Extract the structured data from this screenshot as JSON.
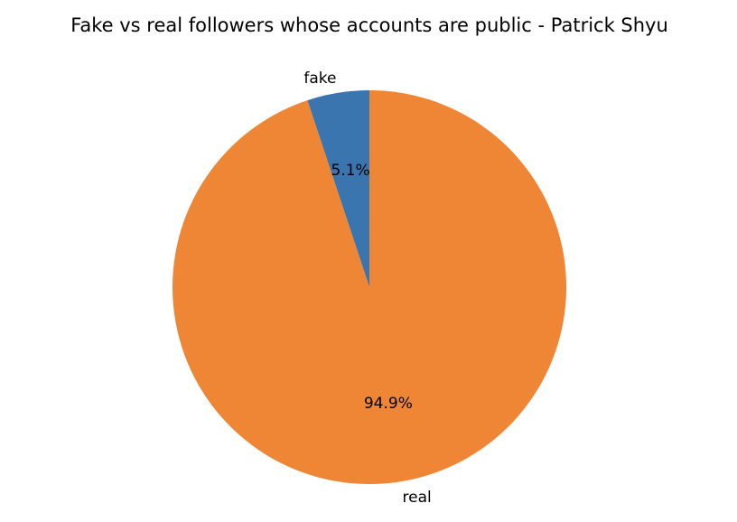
{
  "chart_data": {
    "type": "pie",
    "title": "Fake vs real followers whose accounts are public - Patrick Shyu",
    "categories": [
      "fake",
      "real"
    ],
    "values": [
      5.1,
      94.9
    ],
    "percent_labels": [
      "5.1%",
      "94.9%"
    ],
    "colors": [
      "#3a75b0",
      "#ef8636"
    ],
    "start_angle_deg": 90,
    "direction": "counterclockwise",
    "legend": "none"
  }
}
